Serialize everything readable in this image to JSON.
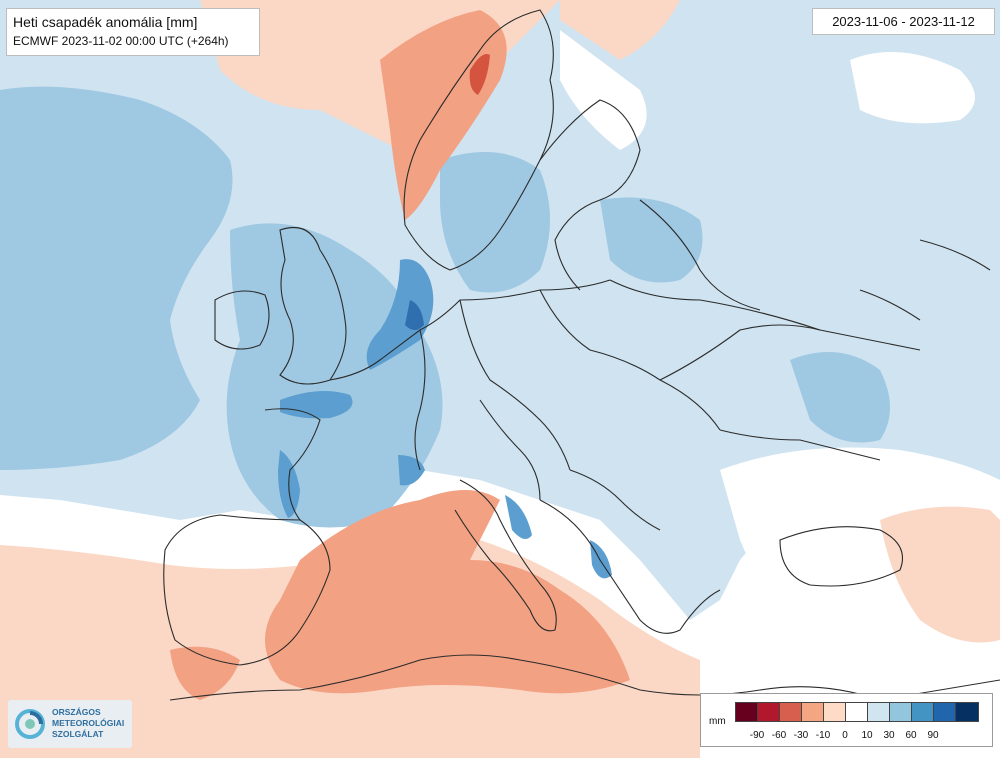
{
  "header": {
    "title": "Heti csapadék anomália [mm]",
    "subtitle": "ECMWF 2023-11-02 00:00 UTC (+264h)"
  },
  "period": "2023-11-06 - 2023-11-12",
  "legend": {
    "unit": "mm",
    "colors": [
      "#67001f",
      "#b2182b",
      "#d6604d",
      "#f4a582",
      "#fddbc7",
      "#ffffff",
      "#d1e5f0",
      "#92c5de",
      "#4393c3",
      "#2166ac",
      "#053061"
    ],
    "ticks": [
      "-90",
      "-60",
      "-30",
      "-10",
      "0",
      "10",
      "30",
      "60",
      "90"
    ]
  },
  "logo": {
    "lines": [
      "ORSZÁGOS",
      "METEOROLÓGIAI",
      "SZOLGÁLAT"
    ]
  },
  "map_colors": {
    "light_blue": "#cfe3f0",
    "mid_blue": "#9fc8e2",
    "deep_blue": "#5b9ecf",
    "dark_blue": "#2f6fb0",
    "light_red": "#fbd8c6",
    "mid_red": "#f2a183",
    "dark_red": "#d4543f",
    "border": "#2b2b2b"
  }
}
